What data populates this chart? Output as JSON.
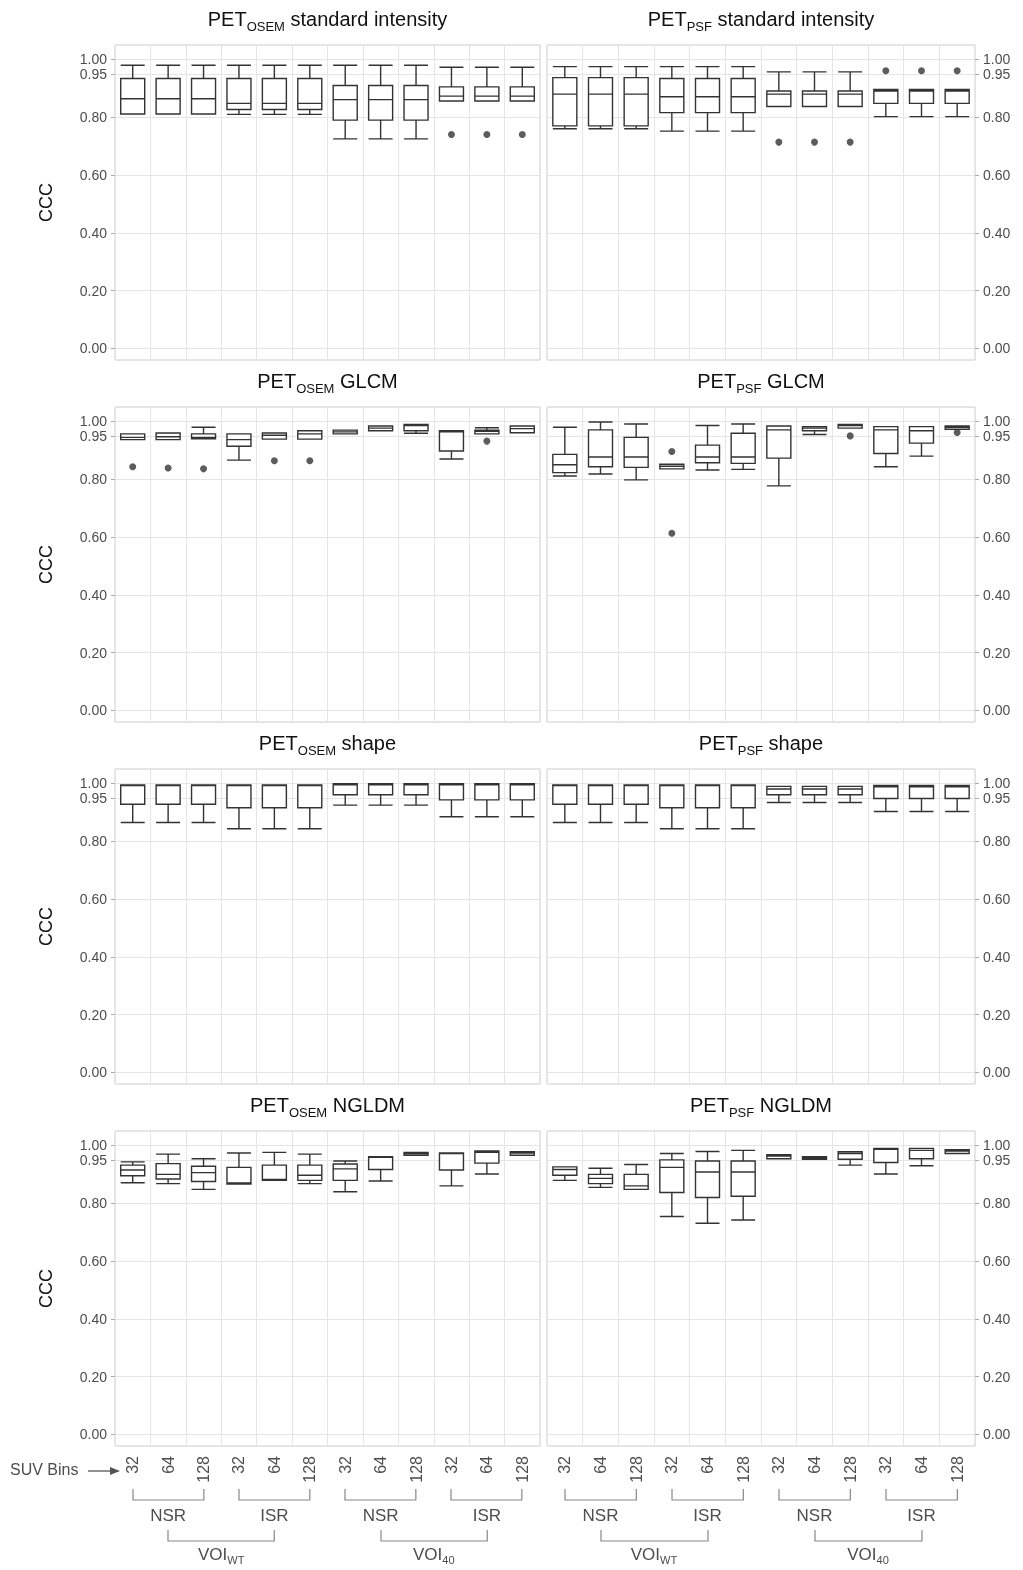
{
  "chart_data": [
    {
      "type": "box",
      "title": "PET$_{OSEM}$ standard intensity",
      "ylabel": "CCC",
      "categories": [
        "32",
        "64",
        "128",
        "32",
        "64",
        "128",
        "32",
        "64",
        "128",
        "32",
        "64",
        "128"
      ],
      "ylim": [
        -0.04,
        1.05
      ],
      "yticks": [
        {
          "value": 0,
          "label": "0.00"
        },
        {
          "value": 0.2,
          "label": "0.20"
        },
        {
          "value": 0.4,
          "label": "0.40"
        },
        {
          "value": 0.6,
          "label": "0.60"
        },
        {
          "value": 0.8,
          "label": "0.80"
        },
        {
          "value": 0.95,
          "label": "0.95"
        },
        {
          "value": 1,
          "label": "1.00"
        }
      ],
      "grid": true,
      "tick_labels": "y",
      "series": [
        {
          "color": "#333333",
          "boxes": [
            {
              "low": 0.811,
              "q1": 0.811,
              "median": 0.864,
              "q3": 0.934,
              "high": 0.98
            },
            {
              "low": 0.811,
              "q1": 0.811,
              "median": 0.864,
              "q3": 0.934,
              "high": 0.98
            },
            {
              "low": 0.811,
              "q1": 0.811,
              "median": 0.864,
              "q3": 0.934,
              "high": 0.98
            },
            {
              "low": 0.81,
              "q1": 0.827,
              "median": 0.848,
              "q3": 0.934,
              "high": 0.98
            },
            {
              "low": 0.81,
              "q1": 0.827,
              "median": 0.848,
              "q3": 0.934,
              "high": 0.98
            },
            {
              "low": 0.81,
              "q1": 0.827,
              "median": 0.848,
              "q3": 0.934,
              "high": 0.98
            },
            {
              "low": 0.725,
              "q1": 0.79,
              "median": 0.861,
              "q3": 0.91,
              "high": 0.98
            },
            {
              "low": 0.725,
              "q1": 0.79,
              "median": 0.861,
              "q3": 0.91,
              "high": 0.98
            },
            {
              "low": 0.725,
              "q1": 0.79,
              "median": 0.861,
              "q3": 0.91,
              "high": 0.98
            },
            {
              "low": 0.856,
              "q1": 0.856,
              "median": 0.873,
              "q3": 0.905,
              "high": 0.973,
              "outliers": [
                0.74
              ]
            },
            {
              "low": 0.856,
              "q1": 0.856,
              "median": 0.873,
              "q3": 0.905,
              "high": 0.973,
              "outliers": [
                0.74
              ]
            },
            {
              "low": 0.856,
              "q1": 0.856,
              "median": 0.873,
              "q3": 0.905,
              "high": 0.973,
              "outliers": [
                0.74
              ]
            }
          ]
        }
      ]
    },
    {
      "type": "box",
      "title": "PET$_{PSF}$ standard intensity",
      "categories": [
        "32",
        "64",
        "128",
        "32",
        "64",
        "128",
        "32",
        "64",
        "128",
        "32",
        "64",
        "128"
      ],
      "ylim": [
        -0.04,
        1.05
      ],
      "yticks": [
        {
          "value": 0,
          "label": "0.00"
        },
        {
          "value": 0.2,
          "label": "0.20"
        },
        {
          "value": 0.4,
          "label": "0.40"
        },
        {
          "value": 0.6,
          "label": "0.60"
        },
        {
          "value": 0.8,
          "label": "0.80"
        },
        {
          "value": 0.95,
          "label": "0.95"
        },
        {
          "value": 1,
          "label": "1.00"
        }
      ],
      "grid": true,
      "tick_labels": "y",
      "series": [
        {
          "color": "#333333",
          "boxes": [
            {
              "low": 0.76,
              "q1": 0.77,
              "median": 0.88,
              "q3": 0.937,
              "high": 0.975
            },
            {
              "low": 0.76,
              "q1": 0.77,
              "median": 0.88,
              "q3": 0.937,
              "high": 0.975
            },
            {
              "low": 0.76,
              "q1": 0.77,
              "median": 0.88,
              "q3": 0.937,
              "high": 0.975
            },
            {
              "low": 0.752,
              "q1": 0.816,
              "median": 0.871,
              "q3": 0.934,
              "high": 0.975
            },
            {
              "low": 0.752,
              "q1": 0.816,
              "median": 0.871,
              "q3": 0.934,
              "high": 0.975
            },
            {
              "low": 0.752,
              "q1": 0.816,
              "median": 0.871,
              "q3": 0.934,
              "high": 0.975
            },
            {
              "low": 0.837,
              "q1": 0.837,
              "median": 0.88,
              "q3": 0.891,
              "high": 0.957,
              "outliers": [
                0.714
              ]
            },
            {
              "low": 0.837,
              "q1": 0.837,
              "median": 0.88,
              "q3": 0.891,
              "high": 0.957,
              "outliers": [
                0.714
              ]
            },
            {
              "low": 0.837,
              "q1": 0.837,
              "median": 0.88,
              "q3": 0.891,
              "high": 0.957,
              "outliers": [
                0.714
              ]
            },
            {
              "low": 0.802,
              "q1": 0.848,
              "median": 0.891,
              "q3": 0.896,
              "high": 0.896,
              "outliers": [
                0.961
              ]
            },
            {
              "low": 0.802,
              "q1": 0.848,
              "median": 0.891,
              "q3": 0.896,
              "high": 0.896,
              "outliers": [
                0.961
              ]
            },
            {
              "low": 0.802,
              "q1": 0.848,
              "median": 0.891,
              "q3": 0.896,
              "high": 0.896,
              "outliers": [
                0.961
              ]
            }
          ]
        }
      ]
    },
    {
      "type": "box",
      "title": "PET$_{OSEM}$ GLCM",
      "ylabel": "CCC",
      "categories": [
        "32",
        "64",
        "128",
        "32",
        "64",
        "128",
        "32",
        "64",
        "128",
        "32",
        "64",
        "128"
      ],
      "ylim": [
        -0.04,
        1.05
      ],
      "yticks": [
        {
          "value": 0,
          "label": "0.00"
        },
        {
          "value": 0.2,
          "label": "0.20"
        },
        {
          "value": 0.4,
          "label": "0.40"
        },
        {
          "value": 0.6,
          "label": "0.60"
        },
        {
          "value": 0.8,
          "label": "0.80"
        },
        {
          "value": 0.95,
          "label": "0.95"
        },
        {
          "value": 1,
          "label": "1.00"
        }
      ],
      "grid": true,
      "tick_labels": "y",
      "series": [
        {
          "color": "#333333",
          "boxes": [
            {
              "low": 0.937,
              "q1": 0.937,
              "median": 0.945,
              "q3": 0.957,
              "high": 0.957,
              "outliers": [
                0.843
              ]
            },
            {
              "low": 0.937,
              "q1": 0.937,
              "median": 0.947,
              "q3": 0.96,
              "high": 0.96,
              "outliers": [
                0.839
              ]
            },
            {
              "low": 0.94,
              "q1": 0.94,
              "median": 0.945,
              "q3": 0.957,
              "high": 0.98,
              "outliers": [
                0.836
              ]
            },
            {
              "low": 0.866,
              "q1": 0.914,
              "median": 0.937,
              "q3": 0.957,
              "high": 0.957
            },
            {
              "low": 0.939,
              "q1": 0.939,
              "median": 0.952,
              "q3": 0.96,
              "high": 0.96,
              "outliers": [
                0.864
              ]
            },
            {
              "low": 0.939,
              "q1": 0.939,
              "median": 0.957,
              "q3": 0.968,
              "high": 0.968,
              "outliers": [
                0.864
              ]
            },
            {
              "low": 0.957,
              "q1": 0.957,
              "median": 0.964,
              "q3": 0.97,
              "high": 0.97
            },
            {
              "low": 0.968,
              "q1": 0.968,
              "median": 0.977,
              "q3": 0.984,
              "high": 0.984
            },
            {
              "low": 0.959,
              "q1": 0.968,
              "median": 0.986,
              "q3": 0.99,
              "high": 0.99
            },
            {
              "low": 0.87,
              "q1": 0.898,
              "median": 0.964,
              "q3": 0.968,
              "high": 0.968
            },
            {
              "low": 0.957,
              "q1": 0.957,
              "median": 0.966,
              "q3": 0.97,
              "high": 0.978,
              "outliers": [
                0.932
              ]
            },
            {
              "low": 0.961,
              "q1": 0.961,
              "median": 0.975,
              "q3": 0.984,
              "high": 0.984
            }
          ]
        }
      ]
    },
    {
      "type": "box",
      "title": "PET$_{PSF}$ GLCM",
      "categories": [
        "32",
        "64",
        "128",
        "32",
        "64",
        "128",
        "32",
        "64",
        "128",
        "32",
        "64",
        "128"
      ],
      "ylim": [
        -0.04,
        1.05
      ],
      "yticks": [
        {
          "value": 0,
          "label": "0.00"
        },
        {
          "value": 0.2,
          "label": "0.20"
        },
        {
          "value": 0.4,
          "label": "0.40"
        },
        {
          "value": 0.6,
          "label": "0.60"
        },
        {
          "value": 0.8,
          "label": "0.80"
        },
        {
          "value": 0.95,
          "label": "0.95"
        },
        {
          "value": 1,
          "label": "1.00"
        }
      ],
      "grid": true,
      "tick_labels": "y",
      "series": [
        {
          "color": "#333333",
          "boxes": [
            {
              "low": 0.811,
              "q1": 0.823,
              "median": 0.85,
              "q3": 0.886,
              "high": 0.98
            },
            {
              "low": 0.818,
              "q1": 0.843,
              "median": 0.877,
              "q3": 0.971,
              "high": 0.998
            },
            {
              "low": 0.798,
              "q1": 0.841,
              "median": 0.877,
              "q3": 0.945,
              "high": 0.991
            },
            {
              "low": 0.836,
              "q1": 0.836,
              "median": 0.845,
              "q3": 0.852,
              "high": 0.852,
              "outliers": [
                0.896,
                0.613
              ]
            },
            {
              "low": 0.832,
              "q1": 0.857,
              "median": 0.877,
              "q3": 0.918,
              "high": 0.986
            },
            {
              "low": 0.834,
              "q1": 0.855,
              "median": 0.877,
              "q3": 0.959,
              "high": 0.991
            },
            {
              "low": 0.777,
              "q1": 0.873,
              "median": 0.971,
              "q3": 0.984,
              "high": 0.984
            },
            {
              "low": 0.955,
              "q1": 0.968,
              "median": 0.977,
              "q3": 0.982,
              "high": 0.982
            },
            {
              "low": 0.977,
              "q1": 0.977,
              "median": 0.986,
              "q3": 0.99,
              "high": 0.99,
              "outliers": [
                0.95
              ]
            },
            {
              "low": 0.843,
              "q1": 0.889,
              "median": 0.971,
              "q3": 0.982,
              "high": 0.982
            },
            {
              "low": 0.88,
              "q1": 0.925,
              "median": 0.968,
              "q3": 0.982,
              "high": 0.982
            },
            {
              "low": 0.973,
              "q1": 0.973,
              "median": 0.98,
              "q3": 0.984,
              "high": 0.984,
              "outliers": [
                0.962
              ]
            }
          ]
        }
      ]
    },
    {
      "type": "box",
      "title": "PET$_{OSEM}$ shape",
      "ylabel": "CCC",
      "categories": [
        "32",
        "64",
        "128",
        "32",
        "64",
        "128",
        "32",
        "64",
        "128",
        "32",
        "64",
        "128"
      ],
      "ylim": [
        -0.04,
        1.05
      ],
      "yticks": [
        {
          "value": 0,
          "label": "0.00"
        },
        {
          "value": 0.2,
          "label": "0.20"
        },
        {
          "value": 0.4,
          "label": "0.40"
        },
        {
          "value": 0.6,
          "label": "0.60"
        },
        {
          "value": 0.8,
          "label": "0.80"
        },
        {
          "value": 0.95,
          "label": "0.95"
        },
        {
          "value": 1,
          "label": "1.00"
        }
      ],
      "grid": true,
      "tick_labels": "y",
      "series": [
        {
          "color": "#333333",
          "boxes": [
            {
              "low": 0.865,
              "q1": 0.928,
              "median": 0.993,
              "q3": 0.995,
              "high": 0.995
            },
            {
              "low": 0.865,
              "q1": 0.928,
              "median": 0.993,
              "q3": 0.995,
              "high": 0.995
            },
            {
              "low": 0.865,
              "q1": 0.928,
              "median": 0.993,
              "q3": 0.995,
              "high": 0.995
            },
            {
              "low": 0.843,
              "q1": 0.916,
              "median": 0.993,
              "q3": 0.995,
              "high": 0.995
            },
            {
              "low": 0.843,
              "q1": 0.916,
              "median": 0.993,
              "q3": 0.995,
              "high": 0.995
            },
            {
              "low": 0.843,
              "q1": 0.916,
              "median": 0.993,
              "q3": 0.995,
              "high": 0.995
            },
            {
              "low": 0.925,
              "q1": 0.961,
              "median": 0.995,
              "q3": 0.999,
              "high": 0.999
            },
            {
              "low": 0.925,
              "q1": 0.961,
              "median": 0.995,
              "q3": 0.999,
              "high": 0.999
            },
            {
              "low": 0.925,
              "q1": 0.961,
              "median": 0.995,
              "q3": 0.999,
              "high": 0.999
            },
            {
              "low": 0.885,
              "q1": 0.943,
              "median": 0.995,
              "q3": 0.999,
              "high": 0.999
            },
            {
              "low": 0.885,
              "q1": 0.943,
              "median": 0.995,
              "q3": 0.999,
              "high": 0.999
            },
            {
              "low": 0.885,
              "q1": 0.943,
              "median": 0.995,
              "q3": 0.999,
              "high": 0.999
            }
          ]
        }
      ]
    },
    {
      "type": "box",
      "title": "PET$_{PSF}$ shape",
      "categories": [
        "32",
        "64",
        "128",
        "32",
        "64",
        "128",
        "32",
        "64",
        "128",
        "32",
        "64",
        "128"
      ],
      "ylim": [
        -0.04,
        1.05
      ],
      "yticks": [
        {
          "value": 0,
          "label": "0.00"
        },
        {
          "value": 0.2,
          "label": "0.20"
        },
        {
          "value": 0.4,
          "label": "0.40"
        },
        {
          "value": 0.6,
          "label": "0.60"
        },
        {
          "value": 0.8,
          "label": "0.80"
        },
        {
          "value": 0.95,
          "label": "0.95"
        },
        {
          "value": 1,
          "label": "1.00"
        }
      ],
      "grid": true,
      "tick_labels": "y",
      "series": [
        {
          "color": "#333333",
          "boxes": [
            {
              "low": 0.865,
              "q1": 0.928,
              "median": 0.993,
              "q3": 0.995,
              "high": 0.995
            },
            {
              "low": 0.865,
              "q1": 0.928,
              "median": 0.993,
              "q3": 0.995,
              "high": 0.995
            },
            {
              "low": 0.865,
              "q1": 0.928,
              "median": 0.993,
              "q3": 0.995,
              "high": 0.995
            },
            {
              "low": 0.843,
              "q1": 0.916,
              "median": 0.993,
              "q3": 0.995,
              "high": 0.995
            },
            {
              "low": 0.843,
              "q1": 0.916,
              "median": 0.993,
              "q3": 0.995,
              "high": 0.995
            },
            {
              "low": 0.843,
              "q1": 0.916,
              "median": 0.993,
              "q3": 0.995,
              "high": 0.995
            },
            {
              "low": 0.934,
              "q1": 0.961,
              "median": 0.981,
              "q3": 0.99,
              "high": 0.99
            },
            {
              "low": 0.934,
              "q1": 0.961,
              "median": 0.981,
              "q3": 0.99,
              "high": 0.99
            },
            {
              "low": 0.934,
              "q1": 0.961,
              "median": 0.981,
              "q3": 0.99,
              "high": 0.99
            },
            {
              "low": 0.903,
              "q1": 0.948,
              "median": 0.988,
              "q3": 0.993,
              "high": 0.993
            },
            {
              "low": 0.903,
              "q1": 0.948,
              "median": 0.988,
              "q3": 0.993,
              "high": 0.993
            },
            {
              "low": 0.903,
              "q1": 0.948,
              "median": 0.988,
              "q3": 0.993,
              "high": 0.993
            }
          ]
        }
      ]
    },
    {
      "type": "box",
      "title": "PET$_{OSEM}$ NGLDM",
      "ylabel": "CCC",
      "xlabel": "SUV Bins",
      "annotations": [
        "NSR",
        "ISR",
        "NSR",
        "ISR",
        "VOI$_{WT}$",
        "VOI$_{40}$"
      ],
      "categories": [
        "32",
        "64",
        "128",
        "32",
        "64",
        "128",
        "32",
        "64",
        "128",
        "32",
        "64",
        "128"
      ],
      "ylim": [
        -0.04,
        1.05
      ],
      "yticks": [
        {
          "value": 0,
          "label": "0.00"
        },
        {
          "value": 0.2,
          "label": "0.20"
        },
        {
          "value": 0.4,
          "label": "0.40"
        },
        {
          "value": 0.6,
          "label": "0.60"
        },
        {
          "value": 0.8,
          "label": "0.80"
        },
        {
          "value": 0.95,
          "label": "0.95"
        },
        {
          "value": 1,
          "label": "1.00"
        }
      ],
      "grid": true,
      "series": [
        {
          "color": "#333333",
          "boxes": [
            {
              "low": 0.871,
              "q1": 0.895,
              "median": 0.915,
              "q3": 0.932,
              "high": 0.943
            },
            {
              "low": 0.868,
              "q1": 0.884,
              "median": 0.9,
              "q3": 0.937,
              "high": 0.97
            },
            {
              "low": 0.848,
              "q1": 0.875,
              "median": 0.906,
              "q3": 0.928,
              "high": 0.954
            },
            {
              "low": 0.866,
              "q1": 0.866,
              "median": 0.87,
              "q3": 0.924,
              "high": 0.974
            },
            {
              "low": 0.879,
              "q1": 0.879,
              "median": 0.882,
              "q3": 0.932,
              "high": 0.976
            },
            {
              "low": 0.868,
              "q1": 0.879,
              "median": 0.897,
              "q3": 0.932,
              "high": 0.97
            },
            {
              "low": 0.84,
              "q1": 0.879,
              "median": 0.919,
              "q3": 0.936,
              "high": 0.946
            },
            {
              "low": 0.877,
              "q1": 0.917,
              "median": 0.959,
              "q3": 0.961,
              "high": 0.961
            },
            {
              "low": 0.966,
              "q1": 0.966,
              "median": 0.972,
              "q3": 0.976,
              "high": 0.976
            },
            {
              "low": 0.86,
              "q1": 0.915,
              "median": 0.972,
              "q3": 0.974,
              "high": 0.974
            },
            {
              "low": 0.901,
              "q1": 0.939,
              "median": 0.976,
              "q3": 0.981,
              "high": 0.981
            },
            {
              "low": 0.966,
              "q1": 0.966,
              "median": 0.974,
              "q3": 0.978,
              "high": 0.978
            }
          ]
        }
      ]
    },
    {
      "type": "box",
      "title": "PET$_{PSF}$ NGLDM",
      "annotations": [
        "NSR",
        "ISR",
        "NSR",
        "ISR",
        "VOI$_{WT}$",
        "VOI$_{40}$"
      ],
      "categories": [
        "32",
        "64",
        "128",
        "32",
        "64",
        "128",
        "32",
        "64",
        "128",
        "32",
        "64",
        "128"
      ],
      "ylim": [
        -0.04,
        1.05
      ],
      "yticks": [
        {
          "value": 0,
          "label": "0.00"
        },
        {
          "value": 0.2,
          "label": "0.20"
        },
        {
          "value": 0.4,
          "label": "0.40"
        },
        {
          "value": 0.6,
          "label": "0.60"
        },
        {
          "value": 0.8,
          "label": "0.80"
        },
        {
          "value": 0.95,
          "label": "0.95"
        },
        {
          "value": 1,
          "label": "1.00"
        }
      ],
      "grid": true,
      "series": [
        {
          "color": "#333333",
          "boxes": [
            {
              "low": 0.879,
              "q1": 0.897,
              "median": 0.917,
              "q3": 0.926,
              "high": 0.926
            },
            {
              "low": 0.855,
              "q1": 0.868,
              "median": 0.886,
              "q3": 0.9,
              "high": 0.921
            },
            {
              "low": 0.848,
              "q1": 0.848,
              "median": 0.86,
              "q3": 0.9,
              "high": 0.934
            },
            {
              "low": 0.754,
              "q1": 0.837,
              "median": 0.924,
              "q3": 0.95,
              "high": 0.972
            },
            {
              "low": 0.731,
              "q1": 0.82,
              "median": 0.908,
              "q3": 0.946,
              "high": 0.979
            },
            {
              "low": 0.742,
              "q1": 0.824,
              "median": 0.908,
              "q3": 0.946,
              "high": 0.983
            },
            {
              "low": 0.954,
              "q1": 0.954,
              "median": 0.963,
              "q3": 0.968,
              "high": 0.968
            },
            {
              "low": 0.952,
              "q1": 0.952,
              "median": 0.957,
              "q3": 0.961,
              "high": 0.961
            },
            {
              "low": 0.932,
              "q1": 0.952,
              "median": 0.972,
              "q3": 0.978,
              "high": 0.978
            },
            {
              "low": 0.901,
              "q1": 0.941,
              "median": 0.987,
              "q3": 0.99,
              "high": 0.99
            },
            {
              "low": 0.93,
              "q1": 0.954,
              "median": 0.983,
              "q3": 0.99,
              "high": 0.99
            },
            {
              "low": 0.972,
              "q1": 0.972,
              "median": 0.981,
              "q3": 0.985,
              "high": 0.985
            }
          ]
        }
      ]
    }
  ]
}
